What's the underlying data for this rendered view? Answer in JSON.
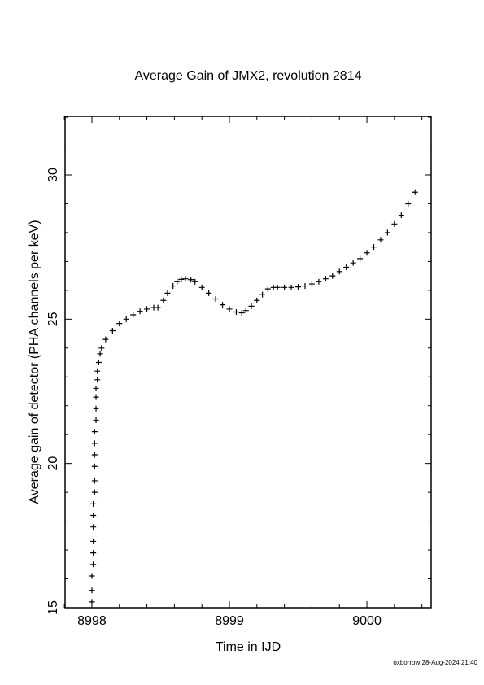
{
  "chart_data": {
    "type": "scatter",
    "title": "Average Gain of JMX2, revolution 2814",
    "x_label": "Time in IJD",
    "y_label": "Average gain of detector (PHA channels per keV)",
    "footer": "oxborrow 28-Aug-2024 21:40",
    "xlim": [
      8997.805,
      9000.467
    ],
    "ylim": [
      15,
      32.03
    ],
    "xticks": [
      8998,
      8999,
      9000
    ],
    "yticks": [
      15,
      20,
      25,
      30
    ],
    "xminorticks": [
      8997.8,
      8998.2,
      8998.4,
      8998.6,
      8998.8,
      8999.2,
      8999.4,
      8999.6,
      8999.8,
      9000.2,
      9000.4
    ],
    "yminorticks": [
      16,
      17,
      18,
      19,
      21,
      22,
      23,
      24,
      26,
      27,
      28,
      29,
      31,
      32
    ],
    "color": "#000000",
    "x": [
      8998.0,
      8998.0,
      8998.0,
      8998.01,
      8998.01,
      8998.01,
      8998.01,
      8998.01,
      8998.01,
      8998.02,
      8998.02,
      8998.02,
      8998.02,
      8998.02,
      8998.02,
      8998.03,
      8998.03,
      8998.03,
      8998.03,
      8998.04,
      8998.04,
      8998.05,
      8998.06,
      8998.07,
      8998.1,
      8998.15,
      8998.2,
      8998.25,
      8998.3,
      8998.35,
      8998.4,
      8998.45,
      8998.48,
      8998.52,
      8998.55,
      8998.59,
      8998.62,
      8998.65,
      8998.68,
      8998.72,
      8998.75,
      8998.8,
      8998.85,
      8998.9,
      8998.95,
      8999.0,
      8999.05,
      8999.09,
      8999.12,
      8999.16,
      8999.2,
      8999.24,
      8999.28,
      8999.32,
      8999.35,
      8999.4,
      8999.45,
      8999.5,
      8999.55,
      8999.6,
      8999.65,
      8999.7,
      8999.75,
      8999.8,
      8999.85,
      8999.9,
      8999.95,
      9000.0,
      9000.05,
      9000.1,
      9000.15,
      9000.2,
      9000.25,
      9000.3,
      9000.35
    ],
    "values": [
      15.2,
      15.6,
      16.1,
      16.5,
      16.9,
      17.3,
      17.8,
      18.2,
      18.6,
      19.0,
      19.4,
      19.9,
      20.3,
      20.7,
      21.1,
      21.5,
      21.9,
      22.3,
      22.6,
      22.9,
      23.2,
      23.5,
      23.8,
      24.0,
      24.3,
      24.6,
      24.85,
      25.0,
      25.15,
      25.27,
      25.35,
      25.4,
      25.4,
      25.65,
      25.9,
      26.15,
      26.3,
      26.38,
      26.4,
      26.37,
      26.3,
      26.1,
      25.9,
      25.7,
      25.5,
      25.35,
      25.25,
      25.22,
      25.3,
      25.45,
      25.65,
      25.85,
      26.05,
      26.1,
      26.1,
      26.1,
      26.1,
      26.12,
      26.15,
      26.22,
      26.3,
      26.4,
      26.5,
      26.65,
      26.8,
      26.95,
      27.1,
      27.3,
      27.5,
      27.75,
      28.0,
      28.3,
      28.6,
      29.0,
      29.4
    ]
  }
}
